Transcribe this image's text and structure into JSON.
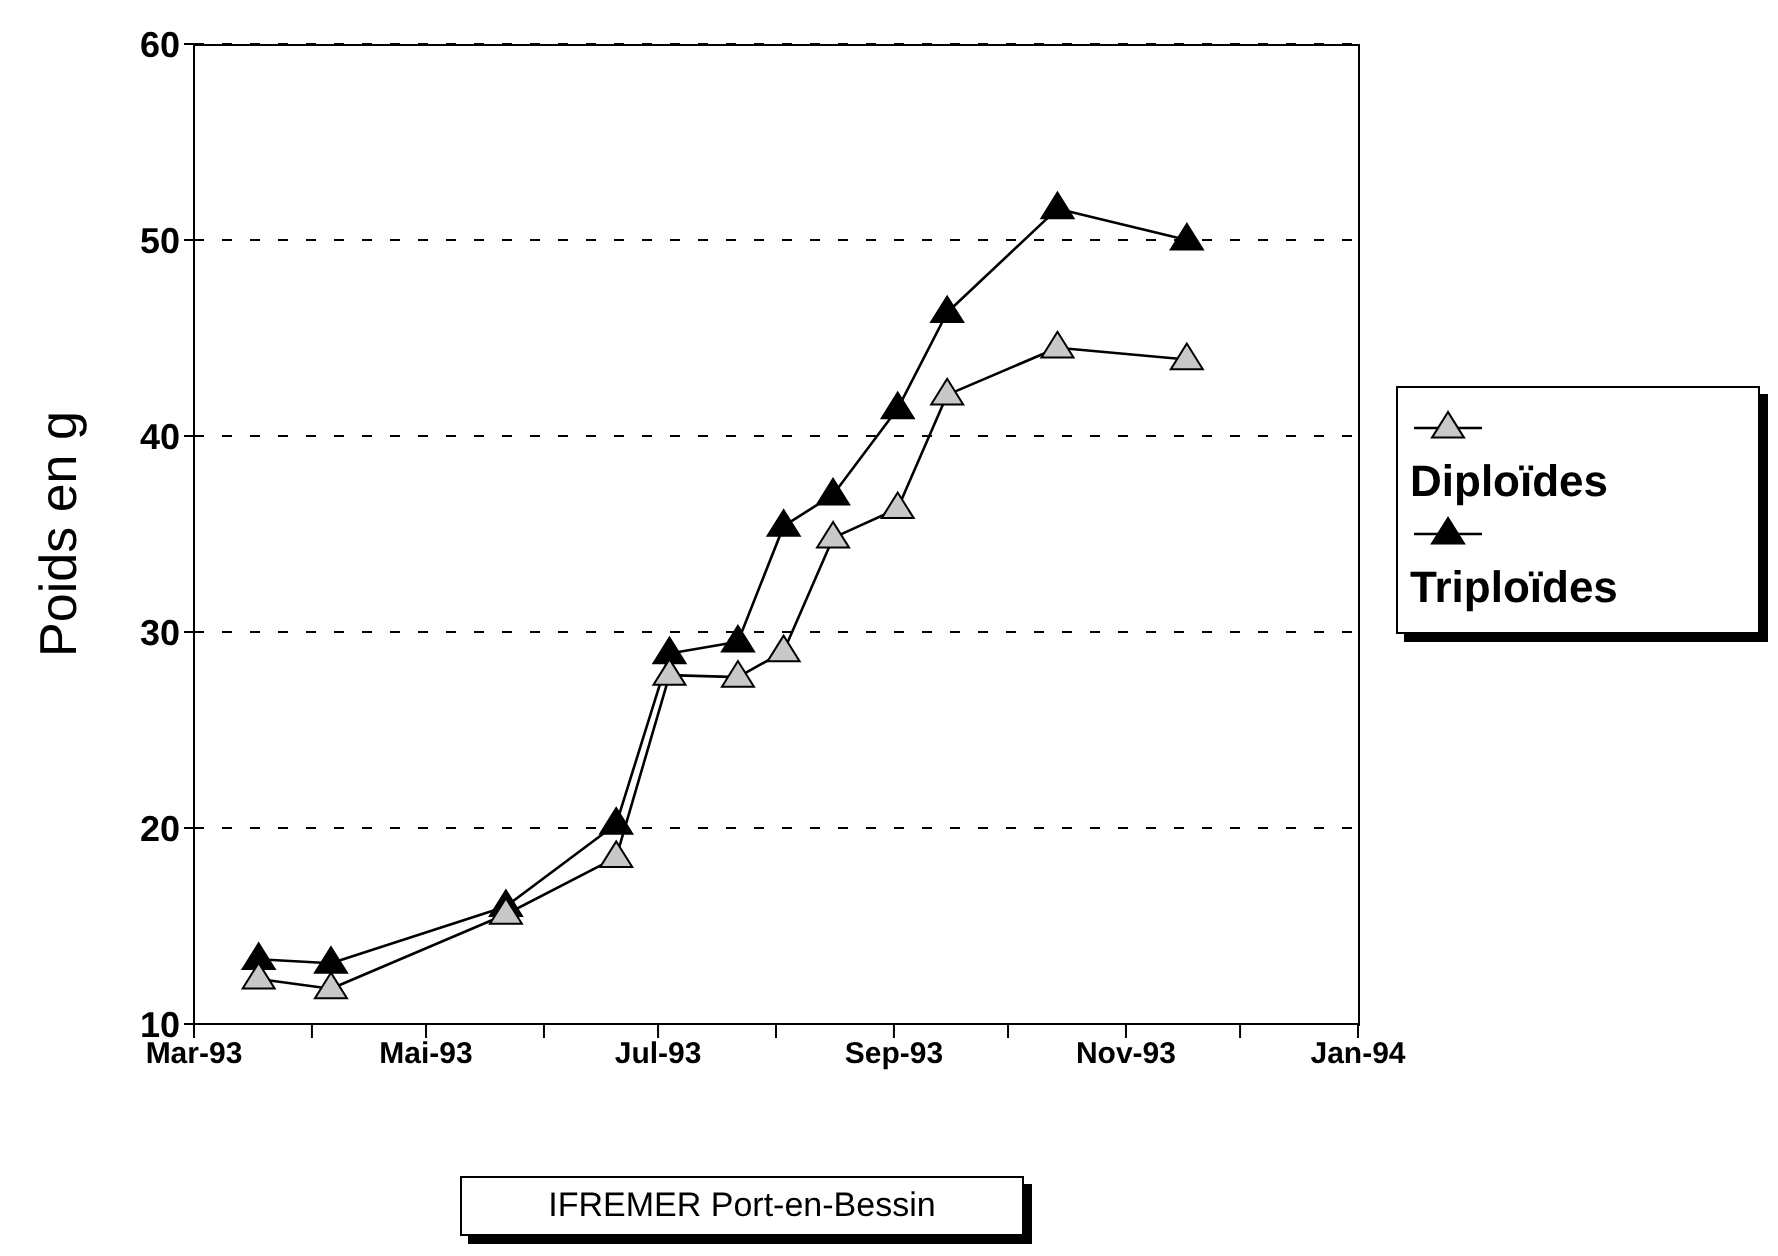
{
  "chart_data": {
    "type": "line",
    "ylabel": "Poids en g",
    "annotations": [
      "IFREMER Port-en-Bessin"
    ],
    "x": [
      "1993-03-18",
      "1993-04-06",
      "1993-05-22",
      "1993-06-20",
      "1993-07-04",
      "1993-07-22",
      "1993-08-03",
      "1993-08-16",
      "1993-09-02",
      "1993-09-15",
      "1993-10-14",
      "1993-11-17"
    ],
    "series": [
      {
        "name": "Diploïdes",
        "color": "#c8c8c8",
        "values": [
          12.3,
          11.8,
          15.6,
          18.5,
          27.8,
          27.7,
          29.0,
          34.8,
          36.3,
          42.1,
          44.5,
          43.9
        ]
      },
      {
        "name": "Triploïdes",
        "color": "#000000",
        "values": [
          13.3,
          13.1,
          16.0,
          20.2,
          28.9,
          29.5,
          35.4,
          37.0,
          41.4,
          46.3,
          51.6,
          50.0
        ]
      }
    ],
    "xlim": [
      "1993-03",
      "1994-01"
    ],
    "xticks": [
      {
        "value": "1993-03",
        "label": "Mar-93"
      },
      {
        "value": "1993-04",
        "label": null
      },
      {
        "value": "1993-05",
        "label": "Mai-93"
      },
      {
        "value": "1993-06",
        "label": null
      },
      {
        "value": "1993-07",
        "label": "Jul-93"
      },
      {
        "value": "1993-08",
        "label": null
      },
      {
        "value": "1993-09",
        "label": "Sep-93"
      },
      {
        "value": "1993-10",
        "label": null
      },
      {
        "value": "1993-11",
        "label": "Nov-93"
      },
      {
        "value": "1993-12",
        "label": null
      },
      {
        "value": "1994-01",
        "label": "Jan-94"
      }
    ],
    "ylim": [
      10,
      60
    ],
    "yticks": [
      10,
      20,
      30,
      40,
      50,
      60
    ],
    "grid": "y",
    "legend": "right",
    "marker": "triangle",
    "line_style": "solid"
  }
}
